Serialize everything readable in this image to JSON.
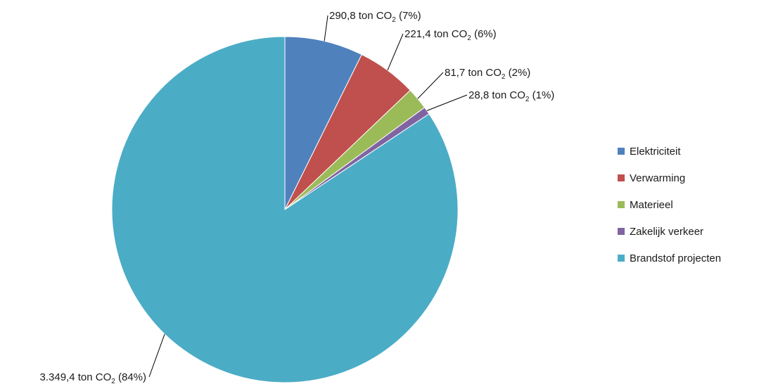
{
  "chart_data": {
    "type": "pie",
    "title": "",
    "unit_prefix": "ton CO",
    "unit_subscript": "2",
    "start_angle_deg": 0,
    "direction": "clockwise",
    "legend_position": "right",
    "slices": [
      {
        "name": "Elektriciteit",
        "value": 290.8,
        "value_label": "290,8",
        "percent_label": "(7%)",
        "color": "#4F81BD"
      },
      {
        "name": "Verwarming",
        "value": 221.4,
        "value_label": "221,4",
        "percent_label": "(6%)",
        "color": "#C0504D"
      },
      {
        "name": "Materieel",
        "value": 81.7,
        "value_label": "81,7",
        "percent_label": "(2%)",
        "color": "#9BBB59"
      },
      {
        "name": "Zakelijk verkeer",
        "value": 28.8,
        "value_label": "28,8",
        "percent_label": "(1%)",
        "color": "#8064A2"
      },
      {
        "name": "Brandstof projecten",
        "value": 3349.4,
        "value_label": "3.349,4",
        "percent_label": "(84%)",
        "color": "#4BACC6"
      }
    ]
  }
}
